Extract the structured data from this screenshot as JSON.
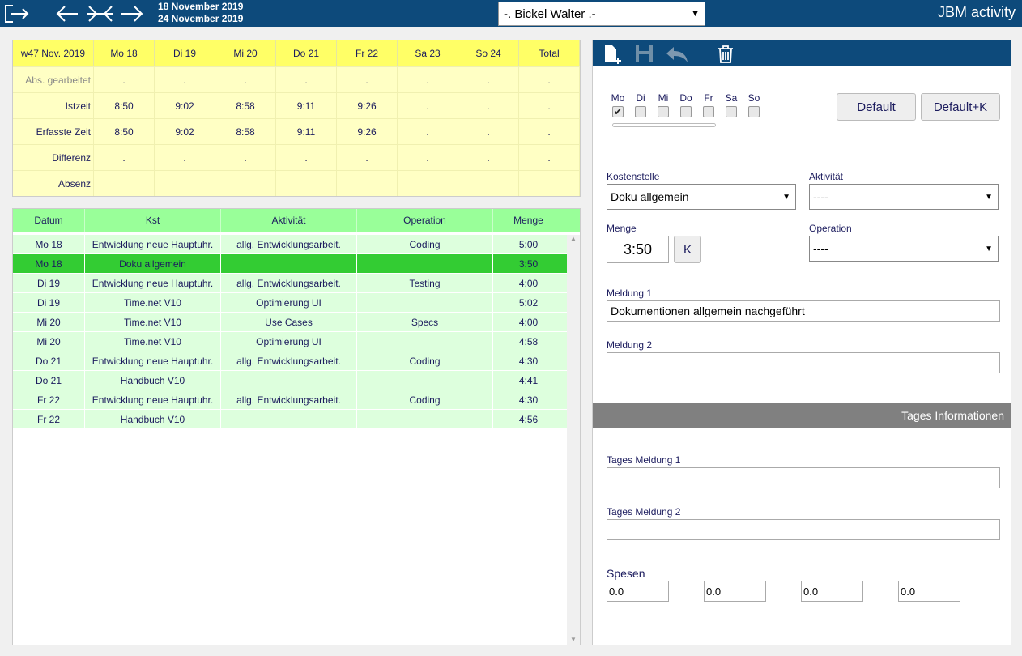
{
  "header": {
    "dates": [
      "18 November 2019",
      "24 November 2019"
    ],
    "user": "-. Bickel Walter .-",
    "app": "JBM activity"
  },
  "summary": {
    "columns": [
      "w47 Nov. 2019",
      "Mo 18",
      "Di 19",
      "Mi 20",
      "Do 21",
      "Fr 22",
      "Sa 23",
      "So 24",
      "Total"
    ],
    "rows": [
      {
        "label": "Abs. gearbeitet",
        "cells": [
          ".",
          ".",
          ".",
          ".",
          ".",
          ".",
          ".",
          "."
        ]
      },
      {
        "label": "Istzeit",
        "cells": [
          "8:50",
          "9:02",
          "8:58",
          "9:11",
          "9:26",
          ".",
          ".",
          "."
        ]
      },
      {
        "label": "Erfasste Zeit",
        "cells": [
          "8:50",
          "9:02",
          "8:58",
          "9:11",
          "9:26",
          ".",
          ".",
          "."
        ]
      },
      {
        "label": "Differenz",
        "cells": [
          ".",
          ".",
          ".",
          ".",
          ".",
          ".",
          ".",
          "."
        ]
      },
      {
        "label": "Absenz",
        "cells": []
      }
    ]
  },
  "entries": {
    "columns": [
      "Datum",
      "Kst",
      "Aktivität",
      "Operation",
      "Menge"
    ],
    "selected_row": 1,
    "rows": [
      [
        "Mo 18",
        "Entwicklung neue Hauptuhr.",
        "allg. Entwicklungsarbeit.",
        "Coding",
        "5:00"
      ],
      [
        "Mo 18",
        "Doku allgemein",
        null,
        null,
        "3:50"
      ],
      [
        "Di 19",
        "Entwicklung neue Hauptuhr.",
        "allg. Entwicklungsarbeit.",
        "Testing",
        "4:00"
      ],
      [
        "Di 19",
        "Time.net V10",
        "Optimierung UI",
        null,
        "5:02"
      ],
      [
        "Mi 20",
        "Time.net V10",
        "Use Cases",
        "Specs",
        "4:00"
      ],
      [
        "Mi 20",
        "Time.net V10",
        "Optimierung UI",
        null,
        "4:58"
      ],
      [
        "Do 21",
        "Entwicklung neue Hauptuhr.",
        "allg. Entwicklungsarbeit.",
        "Coding",
        "4:30"
      ],
      [
        "Do 21",
        "Handbuch V10",
        null,
        null,
        "4:41"
      ],
      [
        "Fr 22",
        "Entwicklung neue Hauptuhr.",
        "allg. Entwicklungsarbeit.",
        "Coding",
        "4:30"
      ],
      [
        "Fr 22",
        "Handbuch V10",
        null,
        null,
        "4:56"
      ]
    ]
  },
  "form": {
    "days": [
      "Mo",
      "Di",
      "Mi",
      "Do",
      "Fr",
      "Sa",
      "So"
    ],
    "checked": [
      true,
      false,
      false,
      false,
      false,
      false,
      false
    ],
    "buttons": [
      "Default",
      "Default+K"
    ],
    "kostenstelle": {
      "label": "Kostenstelle",
      "value": "Doku allgemein"
    },
    "aktivitaet": {
      "label": "Aktivität",
      "value": "----"
    },
    "menge": {
      "label": "Menge",
      "value": "3:50",
      "button": "K"
    },
    "operation": {
      "label": "Operation",
      "value": "----"
    },
    "meldung1": {
      "label": "Meldung 1",
      "value": "Dokumentionen allgemein nachgeführt"
    },
    "meldung2": {
      "label": "Meldung 2"
    },
    "section": "Tages Informationen",
    "tages1": {
      "label": "Tages Meldung 1"
    },
    "tages2": {
      "label": "Tages Meldung 2"
    },
    "spesen": {
      "label": "Spesen",
      "values": [
        "0.0",
        "0.0",
        "0.0",
        "0.0"
      ]
    }
  }
}
